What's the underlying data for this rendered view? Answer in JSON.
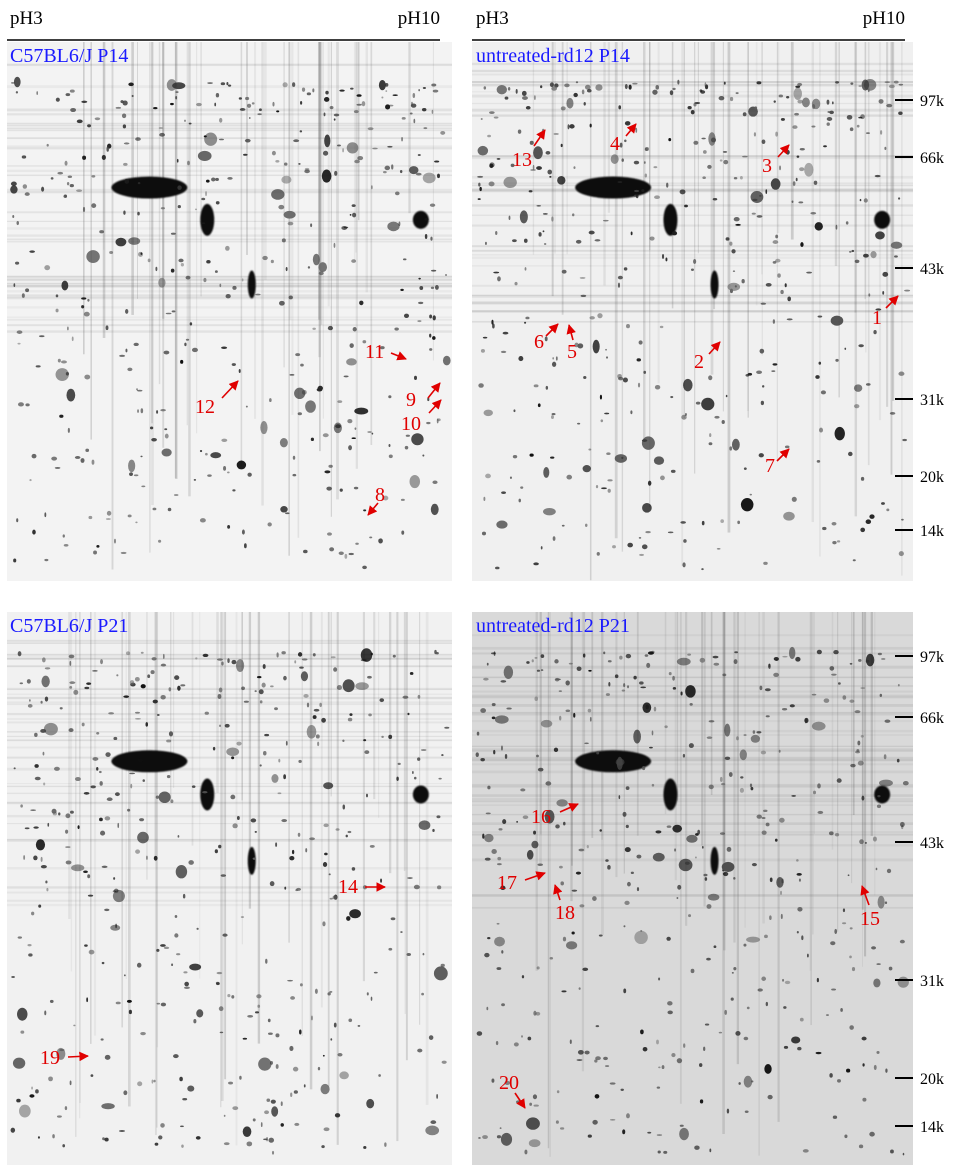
{
  "header": {
    "left": {
      "start": "pH3",
      "end": "pH10"
    },
    "right": {
      "start": "pH3",
      "end": "pH10"
    }
  },
  "panels": [
    {
      "title": "C57BL6/J P14",
      "annotations": [
        "11",
        "12",
        "9",
        "10",
        "8"
      ]
    },
    {
      "title": "untreated-rd12 P14",
      "annotations": [
        "13",
        "4",
        "3",
        "1",
        "6",
        "5",
        "2",
        "7"
      ]
    },
    {
      "title": "C57BL6/J P21",
      "annotations": [
        "14",
        "19"
      ]
    },
    {
      "title": "untreated-rd12 P21",
      "annotations": [
        "16",
        "17",
        "18",
        "15",
        "20"
      ]
    }
  ],
  "markers": {
    "top": [
      "97k",
      "66k",
      "43k",
      "31k",
      "20k",
      "14k"
    ],
    "bottom": [
      "97k",
      "66k",
      "43k",
      "31k",
      "20k",
      "14k"
    ]
  }
}
